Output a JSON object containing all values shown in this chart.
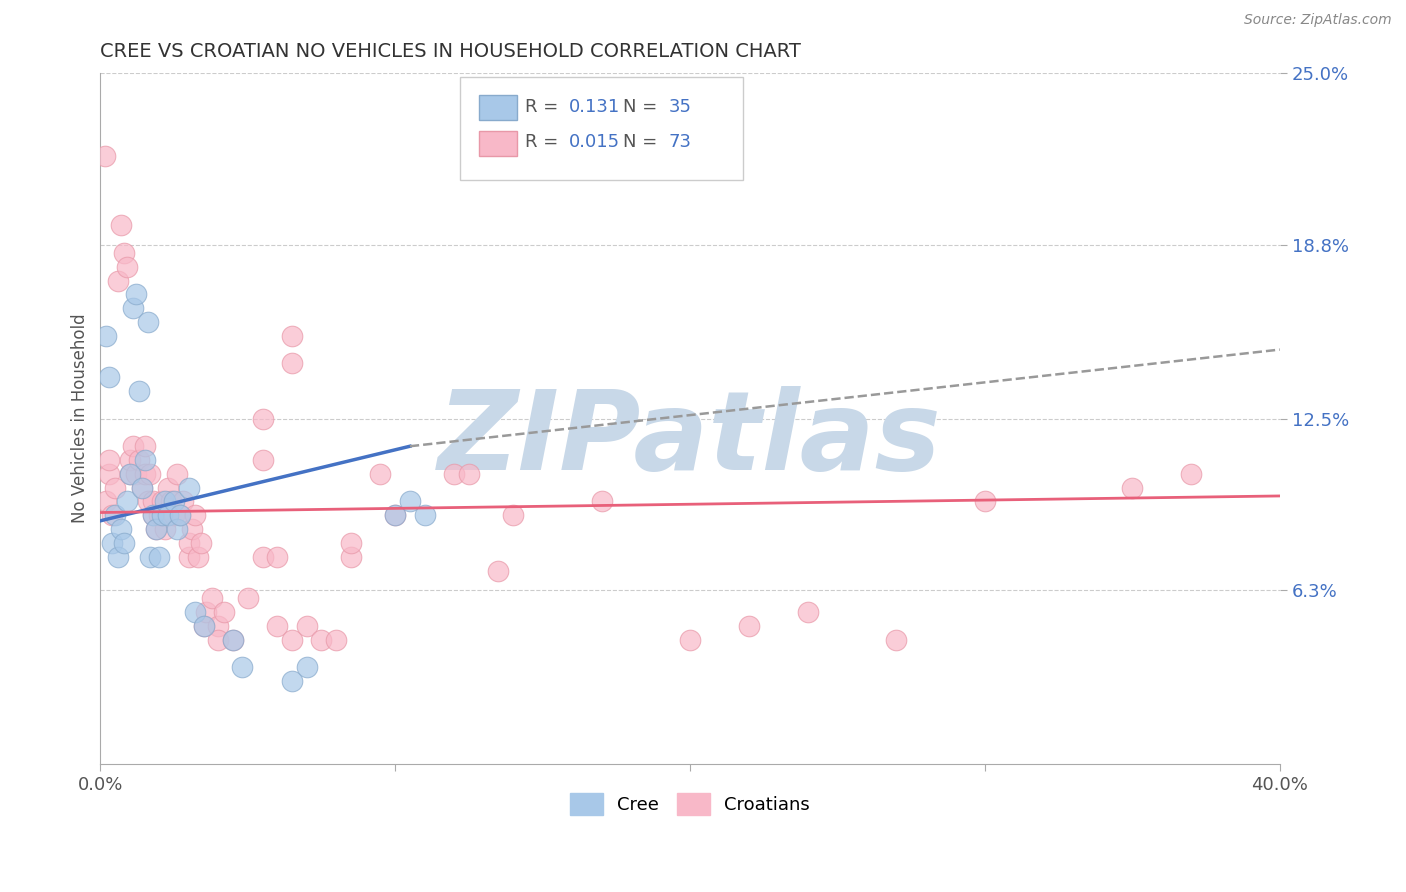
{
  "title": "CREE VS CROATIAN NO VEHICLES IN HOUSEHOLD CORRELATION CHART",
  "source_text": "Source: ZipAtlas.com",
  "ylabel": "No Vehicles in Household",
  "xlim": [
    0.0,
    40.0
  ],
  "ylim": [
    0.0,
    25.0
  ],
  "ytick_values": [
    6.3,
    12.5,
    18.8,
    25.0
  ],
  "background_color": "#ffffff",
  "grid_color": "#cccccc",
  "watermark_text": "ZIPatlas",
  "watermark_color": "#c8d8e8",
  "legend_r_cree": "0.131",
  "legend_n_cree": "35",
  "legend_r_croatian": "0.015",
  "legend_n_croatian": "73",
  "cree_color": "#a8c8e8",
  "croatian_color": "#f8b8c8",
  "cree_edge_color": "#88aacc",
  "croatian_edge_color": "#e898a8",
  "cree_line_color": "#4472c4",
  "croatian_line_color": "#e8607a",
  "dashed_line_color": "#999999",
  "num_color": "#4472c4",
  "cree_scatter_x": [
    0.2,
    0.3,
    0.4,
    0.5,
    0.6,
    0.7,
    0.8,
    0.9,
    1.0,
    1.1,
    1.2,
    1.3,
    1.4,
    1.5,
    1.6,
    1.7,
    1.8,
    1.9,
    2.0,
    2.1,
    2.2,
    2.3,
    2.5,
    2.6,
    2.7,
    3.0,
    3.2,
    3.5,
    4.5,
    4.8,
    6.5,
    7.0,
    10.0,
    10.5,
    11.0
  ],
  "cree_scatter_y": [
    15.5,
    14.0,
    8.0,
    9.0,
    7.5,
    8.5,
    8.0,
    9.5,
    10.5,
    16.5,
    17.0,
    13.5,
    10.0,
    11.0,
    16.0,
    7.5,
    9.0,
    8.5,
    7.5,
    9.0,
    9.5,
    9.0,
    9.5,
    8.5,
    9.0,
    10.0,
    5.5,
    5.0,
    4.5,
    3.5,
    3.0,
    3.5,
    9.0,
    9.5,
    9.0
  ],
  "croatian_scatter_x": [
    0.2,
    0.3,
    0.4,
    0.5,
    0.6,
    0.7,
    0.8,
    0.9,
    1.0,
    1.0,
    1.1,
    1.2,
    1.3,
    1.4,
    1.5,
    1.5,
    1.6,
    1.7,
    1.8,
    1.8,
    1.9,
    2.0,
    2.1,
    2.2,
    2.3,
    2.4,
    2.5,
    2.6,
    2.7,
    2.8,
    3.0,
    3.0,
    3.1,
    3.2,
    3.3,
    3.4,
    3.5,
    3.6,
    3.8,
    4.0,
    4.0,
    4.2,
    4.5,
    5.0,
    5.5,
    6.0,
    6.0,
    6.5,
    7.0,
    7.5,
    8.0,
    10.0,
    14.0,
    17.0,
    20.0,
    22.0,
    24.0,
    27.0,
    30.0,
    35.0,
    37.0,
    0.15,
    0.3,
    5.5,
    5.5,
    6.5,
    6.5,
    8.5,
    8.5,
    9.5,
    12.0,
    12.5,
    13.5
  ],
  "croatian_scatter_y": [
    9.5,
    10.5,
    9.0,
    10.0,
    17.5,
    19.5,
    18.5,
    18.0,
    10.5,
    11.0,
    11.5,
    10.5,
    11.0,
    10.0,
    10.5,
    11.5,
    9.5,
    10.5,
    9.0,
    9.5,
    8.5,
    9.0,
    9.5,
    8.5,
    10.0,
    9.5,
    9.0,
    10.5,
    9.0,
    9.5,
    7.5,
    8.0,
    8.5,
    9.0,
    7.5,
    8.0,
    5.0,
    5.5,
    6.0,
    5.0,
    4.5,
    5.5,
    4.5,
    6.0,
    7.5,
    5.0,
    7.5,
    4.5,
    5.0,
    4.5,
    4.5,
    9.0,
    9.0,
    9.5,
    4.5,
    5.0,
    5.5,
    4.5,
    9.5,
    10.0,
    10.5,
    22.0,
    11.0,
    11.0,
    12.5,
    14.5,
    15.5,
    7.5,
    8.0,
    10.5,
    10.5,
    10.5,
    7.0
  ],
  "cree_line_x0": 0.0,
  "cree_line_y0": 8.8,
  "cree_line_x1": 10.5,
  "cree_line_y1": 11.5,
  "croatian_line_x0": 0.0,
  "croatian_line_y0": 9.1,
  "croatian_line_x1": 40.0,
  "croatian_line_y1": 9.7,
  "dashed_line_x0": 10.5,
  "dashed_line_y0": 11.5,
  "dashed_line_x1": 40.0,
  "dashed_line_y1": 15.0
}
